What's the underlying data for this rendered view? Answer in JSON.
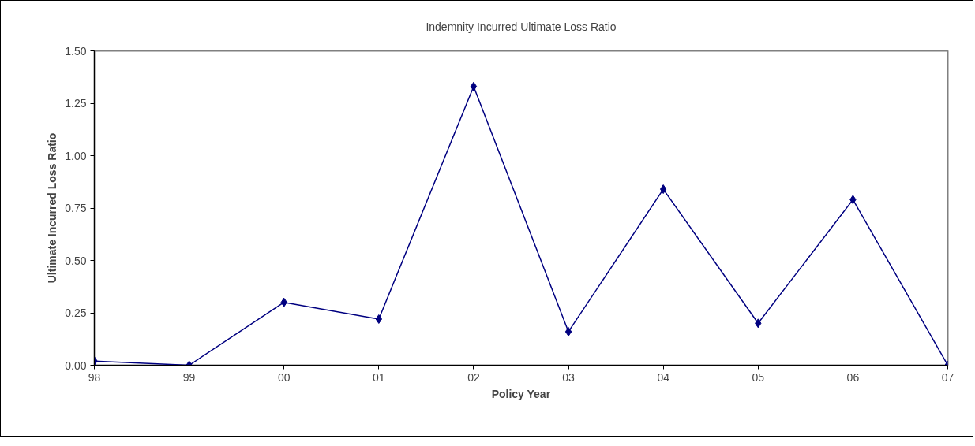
{
  "chart_data": {
    "type": "line",
    "title": "Indemnity Incurred Ultimate Loss Ratio",
    "xlabel": "Policy Year",
    "ylabel": "Ultimate Incurred Loss Ratio",
    "categories": [
      "98",
      "99",
      "00",
      "01",
      "02",
      "03",
      "04",
      "05",
      "06",
      "07"
    ],
    "series": [
      {
        "color": "#000080",
        "values": [
          0.02,
          0.0,
          0.3,
          0.22,
          1.33,
          0.16,
          0.84,
          0.2,
          0.79,
          0.0
        ]
      }
    ],
    "ylim": [
      0,
      1.5
    ],
    "yticks": [
      {
        "value": 0,
        "label": "0.00"
      },
      {
        "value": 0.25,
        "label": "0.25"
      },
      {
        "value": 0.5,
        "label": "0.50"
      },
      {
        "value": 0.75,
        "label": "0.75"
      },
      {
        "value": 1.0,
        "label": "1.00"
      },
      {
        "value": 1.25,
        "label": "1.25"
      },
      {
        "value": 1.5,
        "label": "1.50"
      }
    ],
    "grid": false,
    "marker": "diamond",
    "line_style": "solid"
  }
}
